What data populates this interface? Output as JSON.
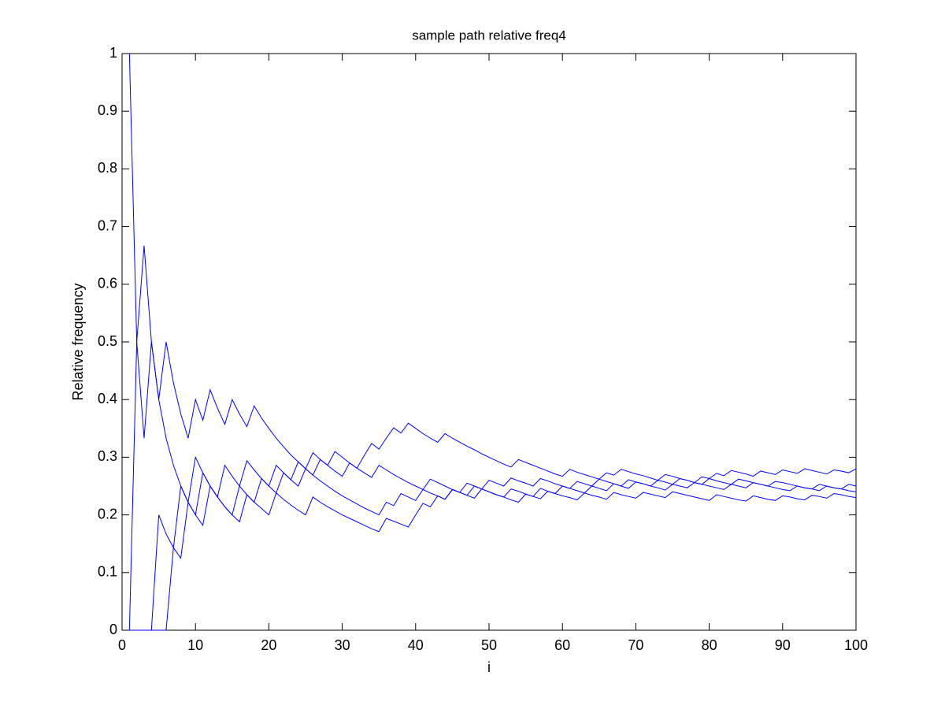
{
  "chart_data": {
    "type": "line",
    "title": "sample path relative freq4",
    "x_label": "i",
    "y_label": "Relative frequency",
    "xlim": [
      0,
      100
    ],
    "ylim": [
      0,
      1
    ],
    "xticks": [
      0,
      10,
      20,
      30,
      40,
      50,
      60,
      70,
      80,
      90,
      100
    ],
    "yticks": [
      0,
      0.1,
      0.2,
      0.3,
      0.4,
      0.5,
      0.6,
      0.7,
      0.8,
      0.9,
      1
    ],
    "x": [
      1,
      2,
      3,
      4,
      5,
      6,
      7,
      8,
      9,
      10,
      11,
      12,
      13,
      14,
      15,
      16,
      17,
      18,
      19,
      20,
      21,
      22,
      23,
      24,
      25,
      26,
      27,
      28,
      29,
      30,
      31,
      32,
      33,
      34,
      35,
      36,
      37,
      38,
      39,
      40,
      41,
      42,
      43,
      44,
      45,
      46,
      47,
      48,
      49,
      50,
      51,
      52,
      53,
      54,
      55,
      56,
      57,
      58,
      59,
      60,
      61,
      62,
      63,
      64,
      65,
      66,
      67,
      68,
      69,
      70,
      71,
      72,
      73,
      74,
      75,
      76,
      77,
      78,
      79,
      80,
      81,
      82,
      83,
      84,
      85,
      86,
      87,
      88,
      89,
      90,
      91,
      92,
      93,
      94,
      95,
      96,
      97,
      98,
      99,
      100
    ],
    "series": [
      {
        "color": "#0000ff",
        "values": [
          1,
          0.5,
          0.333,
          0.5,
          0.4,
          0.333,
          0.286,
          0.25,
          0.222,
          0.3,
          0.273,
          0.25,
          0.231,
          0.286,
          0.267,
          0.25,
          0.294,
          0.278,
          0.263,
          0.25,
          0.286,
          0.273,
          0.261,
          0.292,
          0.28,
          0.308,
          0.296,
          0.286,
          0.31,
          0.3,
          0.29,
          0.281,
          0.303,
          0.324,
          0.314,
          0.333,
          0.351,
          0.342,
          0.359,
          0.35,
          0.341,
          0.333,
          0.326,
          0.341,
          0.333,
          0.326,
          0.319,
          0.313,
          0.306,
          0.3,
          0.294,
          0.288,
          0.283,
          0.296,
          0.291,
          0.286,
          0.281,
          0.276,
          0.271,
          0.267,
          0.279,
          0.274,
          0.27,
          0.266,
          0.262,
          0.273,
          0.269,
          0.279,
          0.275,
          0.271,
          0.268,
          0.264,
          0.26,
          0.27,
          0.267,
          0.263,
          0.26,
          0.256,
          0.266,
          0.263,
          0.272,
          0.268,
          0.277,
          0.274,
          0.271,
          0.267,
          0.276,
          0.273,
          0.27,
          0.278,
          0.275,
          0.272,
          0.28,
          0.277,
          0.274,
          0.271,
          0.278,
          0.276,
          0.273,
          0.28
        ]
      },
      {
        "color": "#0000ff",
        "values": [
          0,
          0.5,
          0.667,
          0.5,
          0.4,
          0.5,
          0.429,
          0.375,
          0.333,
          0.4,
          0.364,
          0.417,
          0.385,
          0.357,
          0.4,
          0.375,
          0.353,
          0.389,
          0.368,
          0.35,
          0.333,
          0.318,
          0.304,
          0.292,
          0.28,
          0.269,
          0.259,
          0.25,
          0.241,
          0.233,
          0.226,
          0.219,
          0.212,
          0.206,
          0.2,
          0.222,
          0.216,
          0.237,
          0.231,
          0.225,
          0.244,
          0.238,
          0.233,
          0.227,
          0.244,
          0.239,
          0.234,
          0.229,
          0.245,
          0.24,
          0.235,
          0.231,
          0.226,
          0.222,
          0.236,
          0.232,
          0.228,
          0.241,
          0.237,
          0.25,
          0.246,
          0.242,
          0.238,
          0.25,
          0.246,
          0.242,
          0.254,
          0.25,
          0.246,
          0.257,
          0.254,
          0.25,
          0.26,
          0.257,
          0.253,
          0.263,
          0.26,
          0.256,
          0.253,
          0.263,
          0.259,
          0.256,
          0.253,
          0.262,
          0.259,
          0.256,
          0.253,
          0.25,
          0.247,
          0.244,
          0.242,
          0.25,
          0.247,
          0.245,
          0.242,
          0.25,
          0.247,
          0.245,
          0.253,
          0.25
        ]
      },
      {
        "color": "#0000ff",
        "values": [
          0,
          0,
          0,
          0,
          0.2,
          0.167,
          0.143,
          0.125,
          0.222,
          0.2,
          0.273,
          0.25,
          0.231,
          0.214,
          0.2,
          0.25,
          0.235,
          0.222,
          0.263,
          0.25,
          0.238,
          0.273,
          0.261,
          0.25,
          0.28,
          0.269,
          0.296,
          0.286,
          0.276,
          0.267,
          0.29,
          0.281,
          0.273,
          0.265,
          0.286,
          0.278,
          0.27,
          0.263,
          0.256,
          0.25,
          0.244,
          0.262,
          0.256,
          0.25,
          0.244,
          0.239,
          0.255,
          0.25,
          0.245,
          0.26,
          0.255,
          0.25,
          0.264,
          0.259,
          0.255,
          0.25,
          0.263,
          0.259,
          0.254,
          0.25,
          0.246,
          0.258,
          0.254,
          0.25,
          0.262,
          0.258,
          0.254,
          0.25,
          0.261,
          0.257,
          0.254,
          0.25,
          0.247,
          0.243,
          0.253,
          0.25,
          0.247,
          0.256,
          0.253,
          0.25,
          0.247,
          0.244,
          0.253,
          0.25,
          0.247,
          0.256,
          0.253,
          0.25,
          0.258,
          0.256,
          0.253,
          0.25,
          0.247,
          0.245,
          0.253,
          0.25,
          0.247,
          0.245,
          0.242,
          0.24
        ]
      },
      {
        "color": "#0000ff",
        "values": [
          0,
          0,
          0,
          0,
          0,
          0,
          0.143,
          0.25,
          0.222,
          0.2,
          0.182,
          0.25,
          0.231,
          0.214,
          0.2,
          0.188,
          0.235,
          0.222,
          0.211,
          0.2,
          0.238,
          0.227,
          0.217,
          0.208,
          0.2,
          0.231,
          0.222,
          0.214,
          0.207,
          0.2,
          0.194,
          0.188,
          0.182,
          0.176,
          0.171,
          0.194,
          0.189,
          0.184,
          0.179,
          0.2,
          0.22,
          0.214,
          0.233,
          0.227,
          0.244,
          0.239,
          0.234,
          0.25,
          0.245,
          0.24,
          0.235,
          0.231,
          0.245,
          0.241,
          0.236,
          0.232,
          0.246,
          0.241,
          0.237,
          0.233,
          0.23,
          0.226,
          0.238,
          0.234,
          0.231,
          0.227,
          0.239,
          0.235,
          0.232,
          0.229,
          0.239,
          0.236,
          0.233,
          0.23,
          0.24,
          0.237,
          0.234,
          0.231,
          0.228,
          0.225,
          0.235,
          0.232,
          0.229,
          0.226,
          0.224,
          0.233,
          0.23,
          0.227,
          0.225,
          0.233,
          0.231,
          0.228,
          0.226,
          0.234,
          0.232,
          0.229,
          0.237,
          0.235,
          0.232,
          0.23
        ]
      }
    ]
  }
}
